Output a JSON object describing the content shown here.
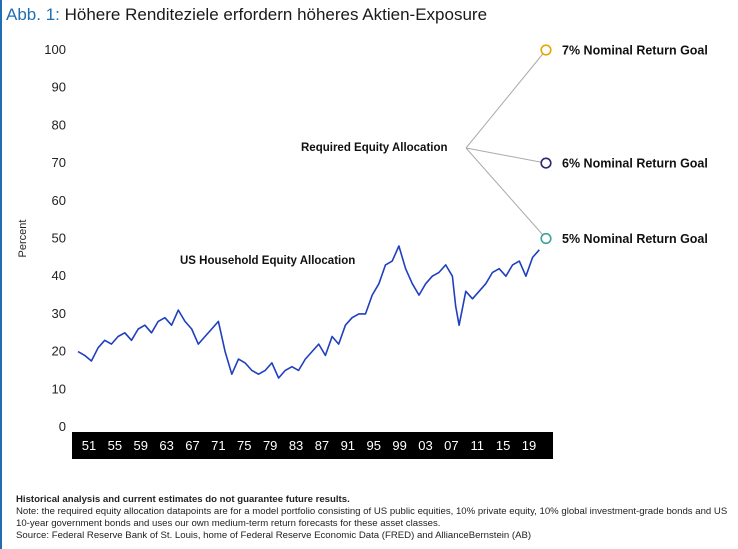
{
  "header": {
    "figure_label": "Abb. 1:",
    "title": "Höhere Renditeziele erfordern höheres Aktien-Exposure"
  },
  "chart_data": {
    "type": "line",
    "title": "Höhere Renditeziele erfordern höheres Aktien-Exposure",
    "xlabel": "",
    "ylabel": "Percent",
    "ylim": [
      0,
      100
    ],
    "yticks": [
      0,
      10,
      20,
      30,
      40,
      50,
      60,
      70,
      80,
      90,
      100
    ],
    "xticks": [
      "51",
      "55",
      "59",
      "63",
      "67",
      "71",
      "75",
      "79",
      "83",
      "87",
      "91",
      "95",
      "99",
      "03",
      "07",
      "11",
      "15",
      "19"
    ],
    "xlim": [
      1951,
      2021
    ],
    "grid": false,
    "series": [
      {
        "name": "US Household Equity Allocation",
        "color": "#1f3fbf",
        "x": [
          1951,
          1952,
          1953,
          1954,
          1955,
          1956,
          1957,
          1958,
          1959,
          1960,
          1961,
          1962,
          1963,
          1964,
          1965,
          1966,
          1967,
          1968,
          1969,
          1970,
          1971,
          1972,
          1973,
          1974,
          1975,
          1976,
          1977,
          1978,
          1979,
          1980,
          1981,
          1982,
          1983,
          1984,
          1985,
          1986,
          1987,
          1988,
          1989,
          1990,
          1991,
          1992,
          1993,
          1994,
          1995,
          1996,
          1997,
          1998,
          1999,
          2000,
          2001,
          2002,
          2003,
          2004,
          2005,
          2006,
          2007,
          2007.5,
          2008,
          2009,
          2010,
          2011,
          2012,
          2013,
          2014,
          2015,
          2016,
          2017,
          2018,
          2019,
          2020
        ],
        "values": [
          20,
          19,
          17.5,
          21,
          23,
          22,
          24,
          25,
          23,
          26,
          27,
          25,
          28,
          29,
          27,
          31,
          28,
          26,
          22,
          24,
          26,
          28,
          20,
          14,
          18,
          17,
          15,
          14,
          15,
          17,
          13,
          15,
          16,
          15,
          18,
          20,
          22,
          19,
          24,
          22,
          27,
          29,
          30,
          30,
          35,
          38,
          43,
          44,
          48,
          42,
          38,
          35,
          38,
          40,
          41,
          43,
          40,
          32,
          27,
          36,
          34,
          36,
          38,
          41,
          42,
          40,
          43,
          44,
          40,
          45,
          47
        ]
      }
    ],
    "goal_points": [
      {
        "name": "7% Nominal Return Goal",
        "value": 100,
        "color": "#e8a800"
      },
      {
        "name": "6% Nominal Return Goal",
        "value": 70,
        "color": "#2a2a6a"
      },
      {
        "name": "5% Nominal Return Goal",
        "value": 50,
        "color": "#3aa39a"
      }
    ],
    "annotations": {
      "series_label": "US Household Equity Allocation",
      "goals_label": "Required Equity Allocation"
    }
  },
  "footer": {
    "disclaimer": "Historical analysis and current estimates do not guarantee future results.",
    "note": "Note: the required equity allocation datapoints are for a model portfolio consisting of US public equities, 10% private equity, 10% global investment-grade bonds and US 10-year government bonds and uses our own medium-term return forecasts for these asset classes.",
    "source": "Source: Federal Reserve Bank of St. Louis, home of Federal Reserve Economic Data (FRED) and AllianceBernstein (AB)"
  }
}
